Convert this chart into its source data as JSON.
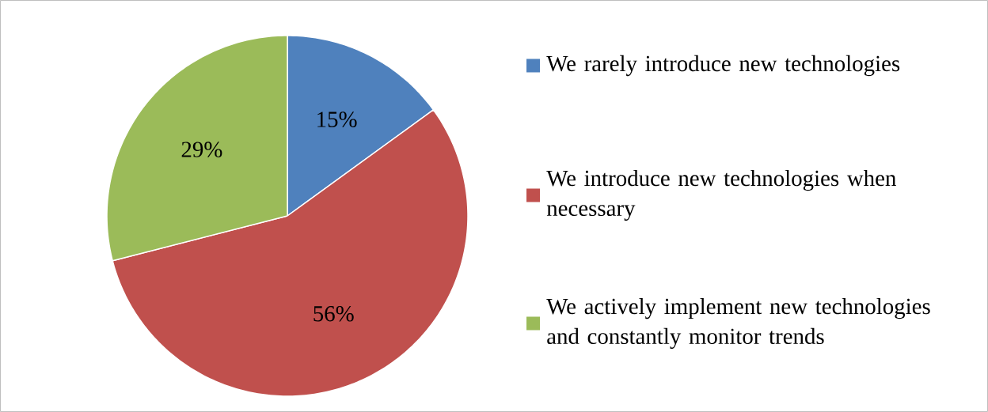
{
  "chart_data": {
    "type": "pie",
    "categories": [
      "We rarely introduce new technologies",
      "We introduce new technologies when necessary",
      "We actively implement new technologies and constantly monitor trends"
    ],
    "values": [
      15,
      56,
      29
    ],
    "colors": [
      "#4f81bd",
      "#c0504d",
      "#9bbb59"
    ],
    "value_labels": [
      "15%",
      "56%",
      "29%"
    ],
    "legend": "right"
  }
}
